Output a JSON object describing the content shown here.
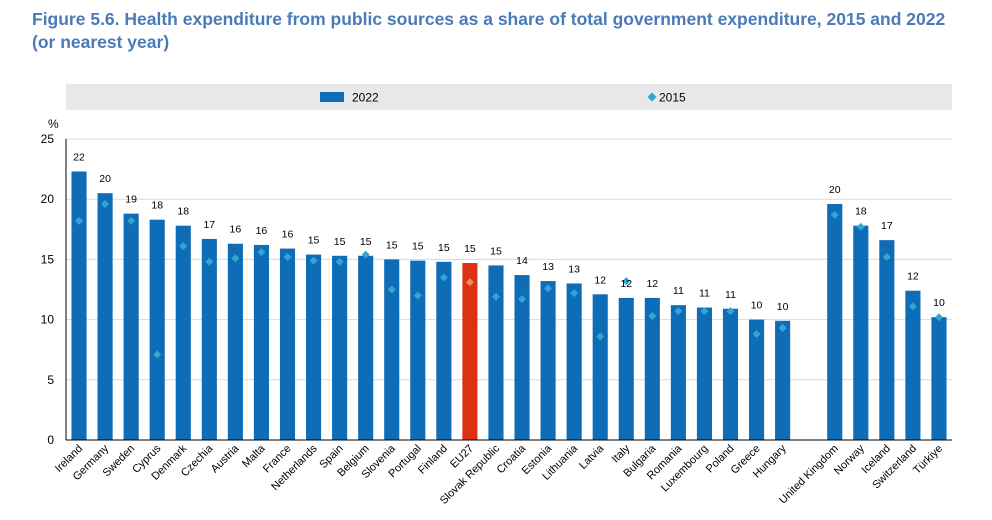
{
  "title": "Figure 5.6. Health expenditure from public sources as a share of total government expenditure, 2015 and 2022 (or nearest year)",
  "colors": {
    "bar": "#0f6cb6",
    "highlight": "#dc3214",
    "marker": "#2fa8cf",
    "highlight_marker": "#f08c64",
    "title": "#4a7ab8",
    "legend_bg": "#e8e8e8"
  },
  "legend": {
    "bar_label": "2022",
    "marker_label": "2015",
    "placement": "top"
  },
  "chart_data": {
    "type": "bar",
    "ylabel": "%",
    "ylim": [
      0,
      25
    ],
    "yticks": [
      0,
      5,
      10,
      15,
      20,
      25
    ],
    "categories": [
      "Ireland",
      "Germany",
      "Sweden",
      "Cyprus",
      "Denmark",
      "Czechia",
      "Austria",
      "Malta",
      "France",
      "Netherlands",
      "Spain",
      "Belgium",
      "Slovenia",
      "Portugal",
      "Finland",
      "EU27",
      "Slovak Republic",
      "Croatia",
      "Estonia",
      "Lithuania",
      "Latvia",
      "Italy",
      "Bulgaria",
      "Romania",
      "Luxembourg",
      "Poland",
      "Greece",
      "Hungary",
      "",
      "United Kingdom",
      "Norway",
      "Iceland",
      "Switzerland",
      "Türkiye"
    ],
    "highlight": "EU27",
    "series": [
      {
        "name": "2022",
        "kind": "bar",
        "values": [
          22.3,
          20.5,
          18.8,
          18.3,
          17.8,
          16.7,
          16.3,
          16.2,
          15.9,
          15.4,
          15.3,
          15.3,
          15.0,
          14.9,
          14.8,
          14.7,
          14.5,
          13.7,
          13.2,
          13.0,
          12.1,
          11.8,
          11.8,
          11.2,
          11.0,
          10.9,
          10.0,
          9.9,
          null,
          19.6,
          17.8,
          16.6,
          12.4,
          10.2
        ]
      },
      {
        "name": "2015",
        "kind": "marker",
        "values": [
          18.2,
          19.6,
          18.2,
          7.1,
          16.1,
          14.8,
          15.1,
          15.6,
          15.2,
          14.9,
          14.8,
          15.4,
          12.5,
          12.0,
          13.5,
          13.1,
          11.9,
          11.7,
          12.6,
          12.2,
          8.6,
          13.2,
          10.3,
          10.7,
          10.7,
          10.7,
          8.8,
          9.3,
          null,
          18.7,
          17.7,
          15.2,
          11.1,
          10.2
        ]
      }
    ],
    "data_labels": [
      "22",
      "20",
      "19",
      "18",
      "18",
      "17",
      "16",
      "16",
      "16",
      "15",
      "15",
      "15",
      "15",
      "15",
      "15",
      "15",
      "15",
      "14",
      "13",
      "13",
      "12",
      "12",
      "12",
      "11",
      "11",
      "11",
      "10",
      "10",
      "",
      "20",
      "18",
      "17",
      "12",
      "10"
    ]
  }
}
